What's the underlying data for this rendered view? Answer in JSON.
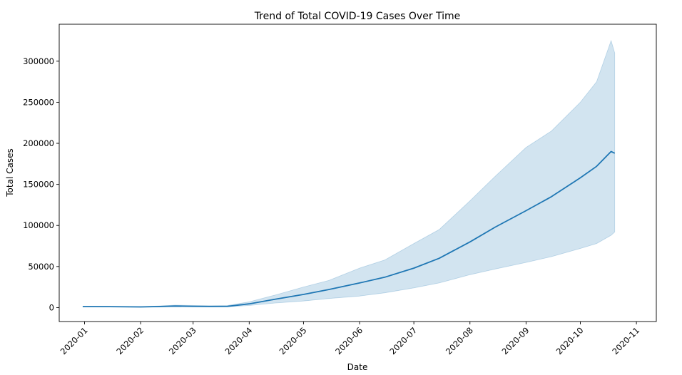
{
  "chart_data": {
    "type": "line",
    "title": "Trend of Total COVID-19 Cases Over Time",
    "xlabel": "Date",
    "ylabel": "Total Cases",
    "x_tick_labels": [
      "2020-01",
      "2020-02",
      "2020-03",
      "2020-04",
      "2020-05",
      "2020-06",
      "2020-07",
      "2020-08",
      "2020-09",
      "2020-10",
      "2020-11"
    ],
    "y_tick_values": [
      0,
      50000,
      100000,
      150000,
      200000,
      250000,
      300000
    ],
    "y_tick_labels": [
      "0",
      "50000",
      "100000",
      "150000",
      "200000",
      "250000",
      "300000"
    ],
    "xlim": [
      "2019-12-18",
      "2020-11-12"
    ],
    "ylim": [
      -17000,
      345000
    ],
    "grid": false,
    "legend": "none",
    "colors": {
      "line": "#1f77b4",
      "band": "#1f77b4"
    },
    "series": [
      {
        "x": [
          "2019-12-31",
          "2020-01-15",
          "2020-02-01",
          "2020-02-10",
          "2020-02-20",
          "2020-03-01",
          "2020-03-10",
          "2020-03-20",
          "2020-04-01",
          "2020-04-15",
          "2020-05-01",
          "2020-05-15",
          "2020-06-01",
          "2020-06-15",
          "2020-07-01",
          "2020-07-15",
          "2020-08-01",
          "2020-08-15",
          "2020-09-01",
          "2020-09-15",
          "2020-10-01",
          "2020-10-10",
          "2020-10-18",
          "2020-10-20"
        ],
        "y": [
          1200,
          1100,
          800,
          1200,
          1800,
          1600,
          1400,
          1500,
          4500,
          10000,
          16000,
          22000,
          30000,
          37000,
          48000,
          60000,
          80000,
          98000,
          118000,
          135000,
          158000,
          172000,
          190000,
          188000
        ],
        "ci_lower": [
          1000,
          900,
          500,
          600,
          900,
          700,
          800,
          900,
          2500,
          5500,
          8000,
          11000,
          14000,
          18000,
          24000,
          30000,
          40000,
          47000,
          55000,
          62000,
          72000,
          78000,
          88000,
          92000
        ],
        "ci_upper": [
          1400,
          1300,
          1200,
          1800,
          3000,
          2600,
          2200,
          2500,
          7000,
          15000,
          25000,
          33000,
          48000,
          58000,
          78000,
          95000,
          130000,
          160000,
          195000,
          215000,
          250000,
          275000,
          325000,
          310000
        ]
      }
    ]
  }
}
